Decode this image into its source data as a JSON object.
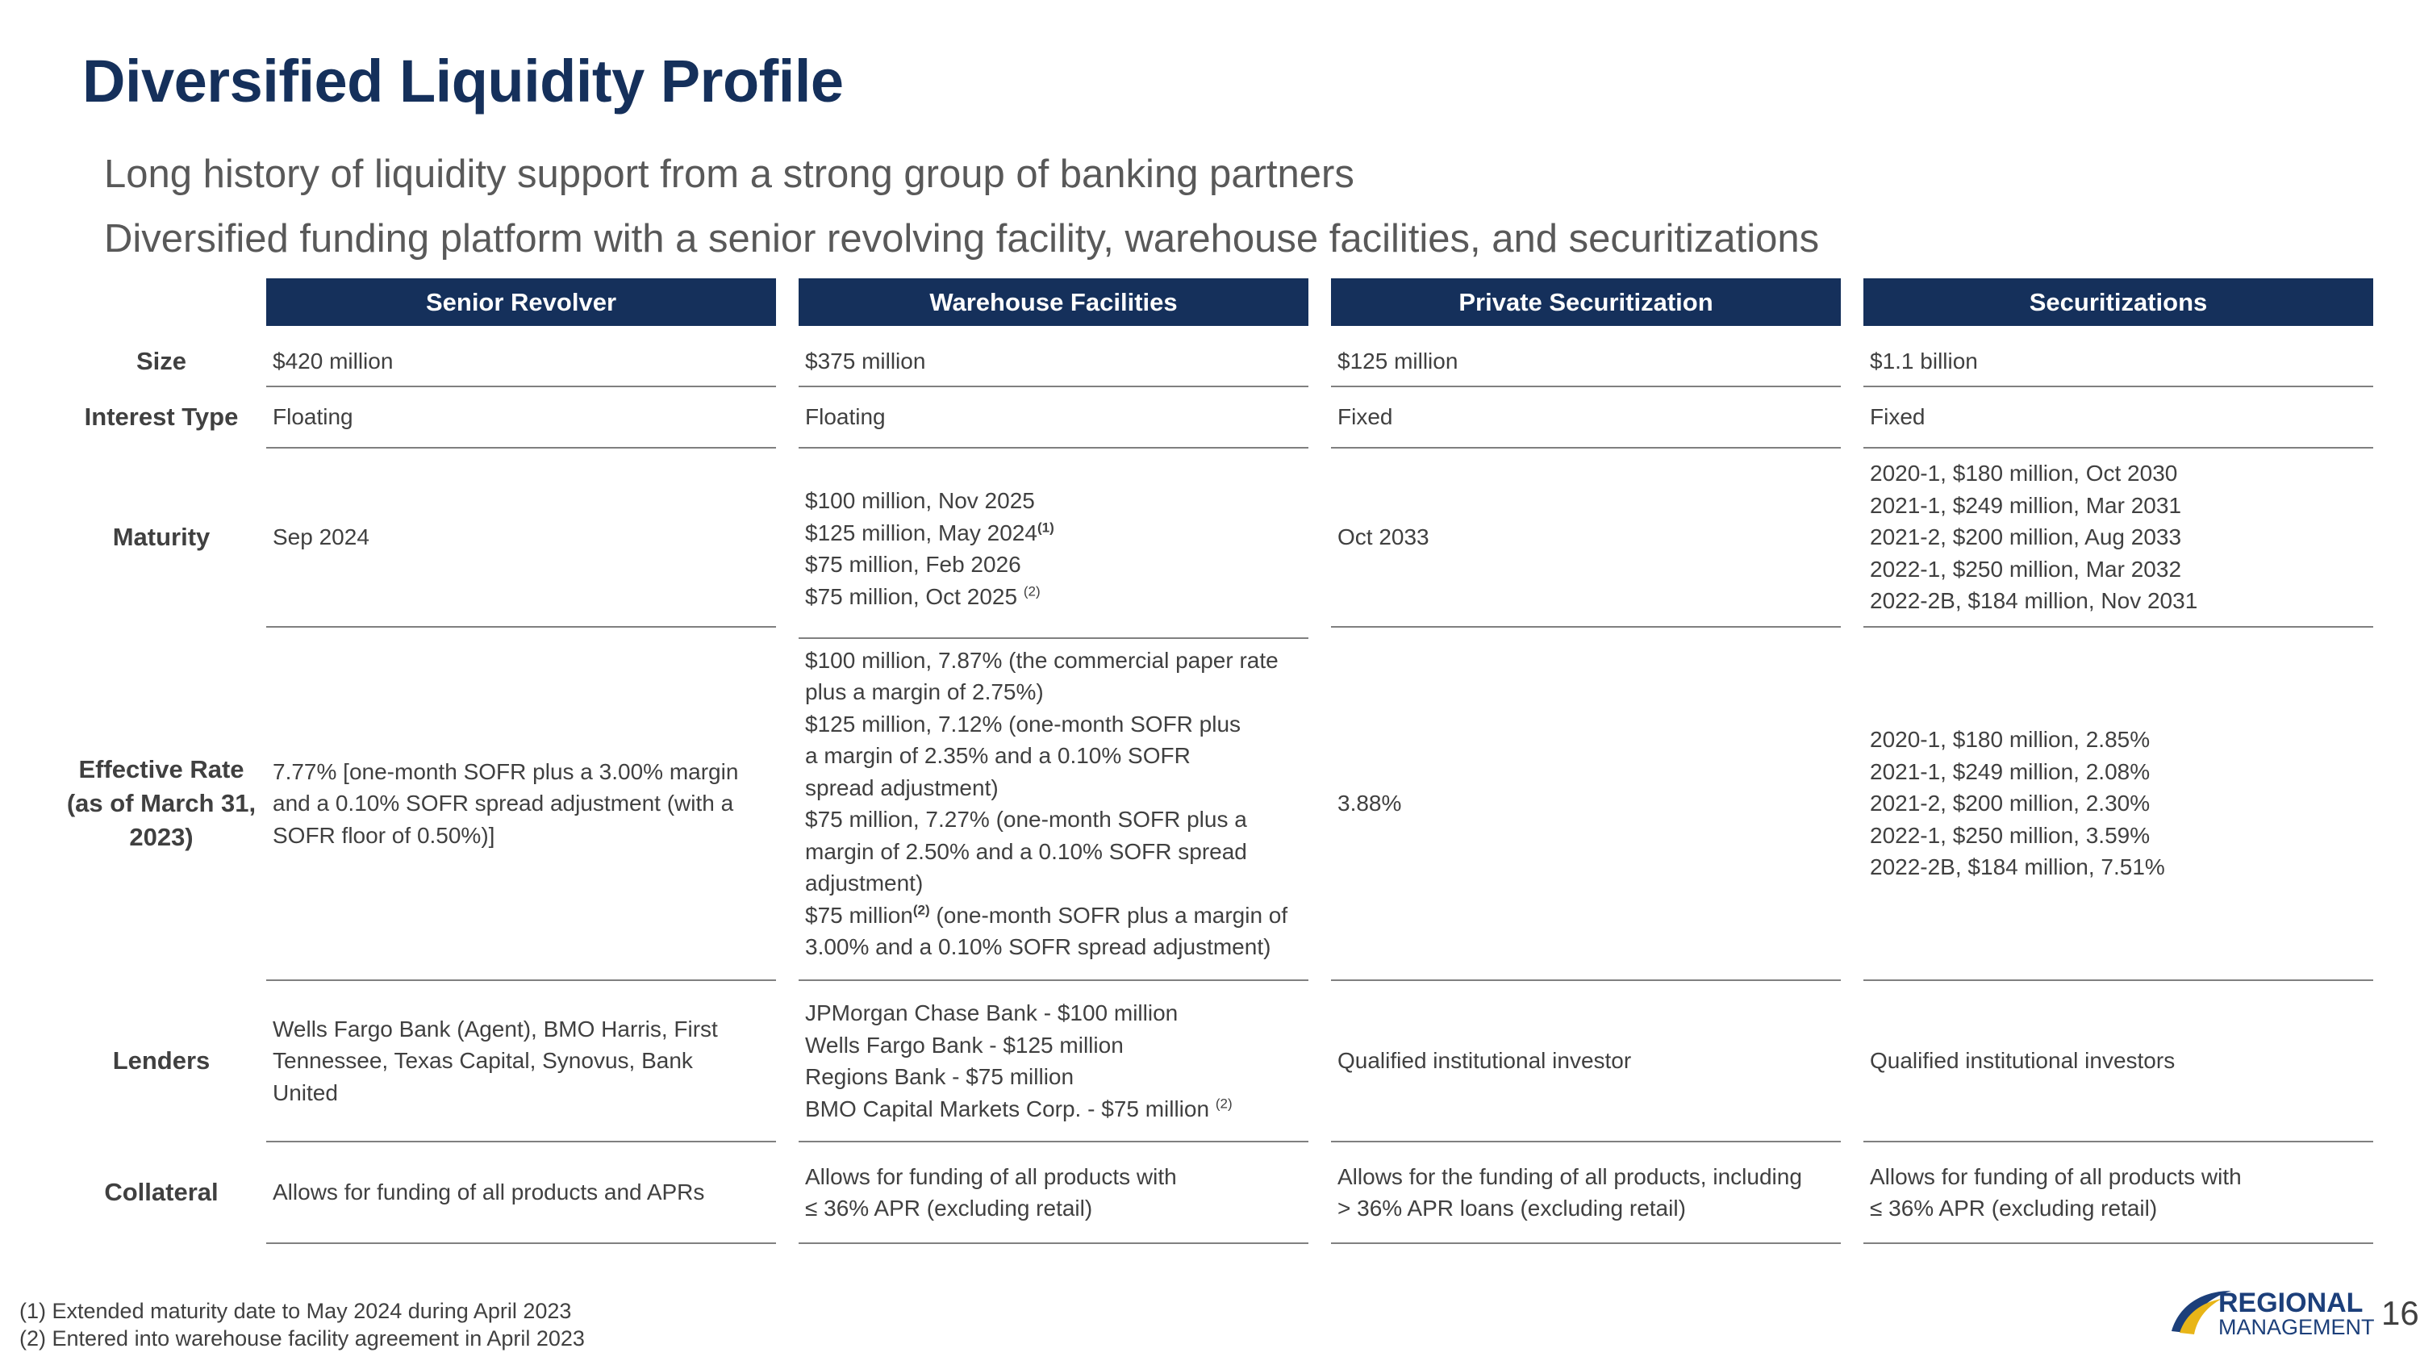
{
  "title": "Diversified Liquidity Profile",
  "bullets": [
    "Long history of liquidity support from a strong group of banking partners",
    "Diversified funding platform with a senior revolving facility, warehouse facilities, and securitizations"
  ],
  "columns": [
    "Senior Revolver",
    "Warehouse Facilities",
    "Private Securitization",
    "Securitizations"
  ],
  "rows": {
    "size": {
      "label": "Size",
      "cells": [
        "$420 million",
        "$375 million",
        "$125 million",
        "$1.1 billion"
      ]
    },
    "interest_type": {
      "label": "Interest Type",
      "cells": [
        "Floating",
        "Floating",
        "Fixed",
        "Fixed"
      ]
    },
    "maturity": {
      "label": "Maturity",
      "senior_revolver": "Sep 2024",
      "warehouse": [
        "$100 million, Nov 2025",
        "$125 million, May 2024",
        "$75 million, Feb 2026",
        "$75 million, Oct 2025"
      ],
      "warehouse_notes": [
        "(1)",
        "(2)"
      ],
      "private": "Oct 2033",
      "securitizations": [
        "2020-1, $180 million, Oct 2030",
        "2021-1, $249 million, Mar 2031",
        "2021-2, $200 million, Aug 2033",
        "2022-1, $250 million, Mar 2032",
        "2022-2B, $184 million, Nov 2031"
      ]
    },
    "effective_rate": {
      "label_lines": [
        "Effective Rate",
        "(as of March 31,",
        "2023)"
      ],
      "senior_revolver": "7.77% [one-month SOFR plus a 3.00% margin and a 0.10% SOFR spread adjustment (with a SOFR floor of 0.50%)]",
      "warehouse": [
        "$100 million, 7.87% (the commercial paper rate plus a margin of 2.75%)",
        "$125 million, 7.12% (one-month SOFR plus a margin of 2.35% and a 0.10% SOFR spread adjustment)",
        "$75 million, 7.27% (one-month SOFR plus a margin of 2.50% and a 0.10% SOFR spread adjustment)"
      ],
      "warehouse_last_prefix": "$75 million",
      "warehouse_last_note": "(2)",
      "warehouse_last_suffix": " (one-month SOFR plus a margin of 3.00% and a 0.10% SOFR spread adjustment)",
      "private": "3.88%",
      "securitizations": [
        "2020-1, $180 million, 2.85%",
        "2021-1, $249 million, 2.08%",
        "2021-2, $200 million, 2.30%",
        "2022-1, $250 million, 3.59%",
        "2022-2B, $184 million, 7.51%"
      ]
    },
    "lenders": {
      "label": "Lenders",
      "senior_revolver": "Wells Fargo Bank (Agent), BMO Harris, First Tennessee, Texas Capital, Synovus, Bank United",
      "warehouse": [
        "JPMorgan Chase Bank - $100 million",
        "Wells Fargo Bank - $125 million",
        "Regions Bank - $75 million",
        "BMO Capital Markets Corp. - $75 million"
      ],
      "warehouse_note": "(2)",
      "private": "Qualified institutional investor",
      "securitizations": "Qualified institutional investors"
    },
    "collateral": {
      "label": "Collateral",
      "senior_revolver": "Allows for funding of all products and APRs",
      "warehouse": [
        "Allows for funding of all products with",
        "≤ 36% APR (excluding retail)"
      ],
      "private": [
        "Allows for the funding of all products, including",
        "> 36% APR loans (excluding retail)"
      ],
      "securitizations": [
        "Allows for funding of all products with",
        "≤ 36% APR (excluding retail)"
      ]
    }
  },
  "footnotes": [
    "(1)  Extended maturity date to May 2024 during April 2023",
    "(2)  Entered into warehouse facility agreement in April 2023"
  ],
  "logo": {
    "line1": "REGIONAL",
    "line2": "MANAGEMENT",
    "icon": "swoosh-icon"
  },
  "page_number": "16",
  "colors": {
    "header_bg": "#15305b",
    "title": "#15305b",
    "logo_blue": "#1c3f7a",
    "logo_gold": "#e8b518"
  }
}
